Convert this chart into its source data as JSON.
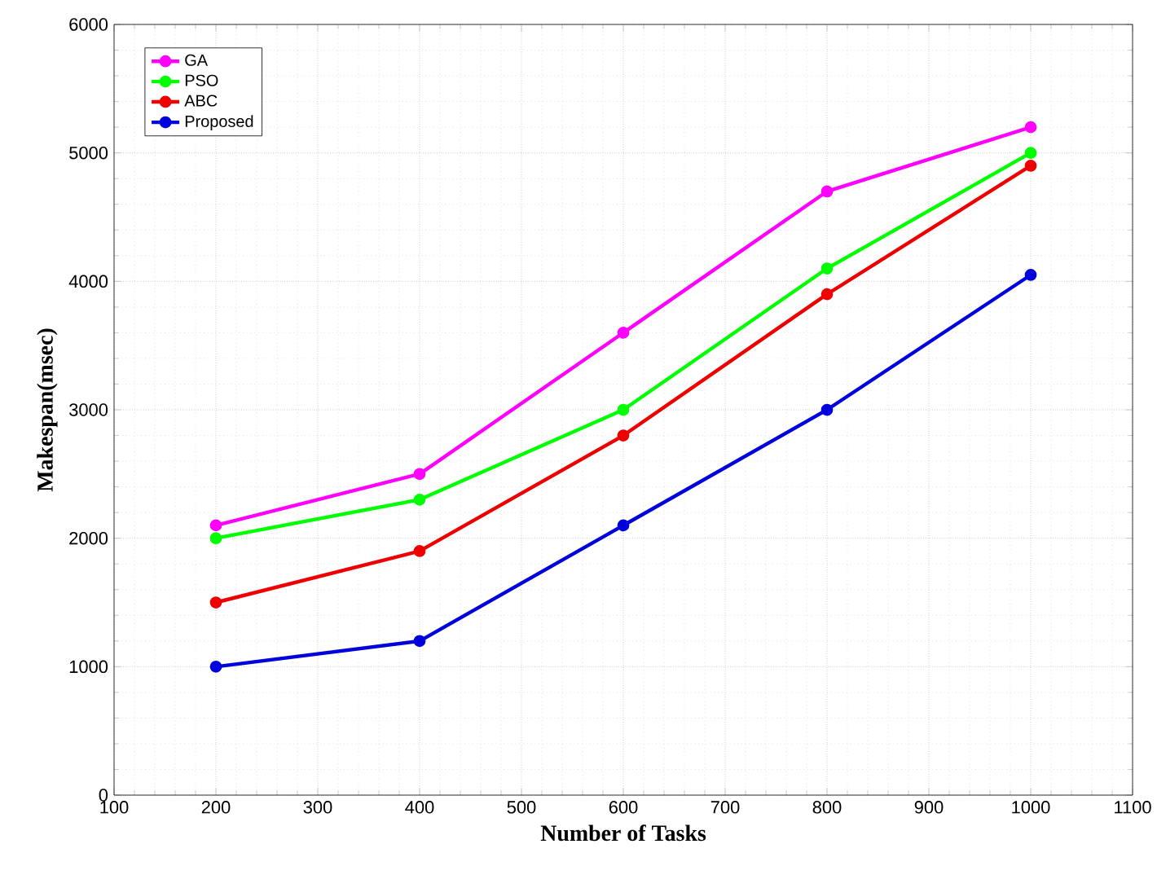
{
  "chart_data": {
    "type": "line",
    "xlabel": "Number of Tasks",
    "ylabel": "Makespan(msec)",
    "x": [
      200,
      400,
      600,
      800,
      1000
    ],
    "series": [
      {
        "name": "GA",
        "color": "#ff00ff",
        "values": [
          2100,
          2500,
          3600,
          4700,
          5200
        ]
      },
      {
        "name": "PSO",
        "color": "#00ff00",
        "values": [
          2000,
          2300,
          3000,
          4100,
          5000
        ]
      },
      {
        "name": "ABC",
        "color": "#ee0000",
        "values": [
          1500,
          1900,
          2800,
          3900,
          4900
        ]
      },
      {
        "name": "Proposed",
        "color": "#0000dd",
        "values": [
          1000,
          1200,
          2100,
          3000,
          4050
        ]
      }
    ],
    "xlim": [
      100,
      1100
    ],
    "ylim": [
      0,
      6000
    ],
    "xticks": [
      100,
      200,
      300,
      400,
      500,
      600,
      700,
      800,
      900,
      1000,
      1100
    ],
    "yticks": [
      0,
      1000,
      2000,
      3000,
      4000,
      5000,
      6000
    ],
    "grid": true,
    "legend": "top left",
    "marker": "circle",
    "line_style": "solid"
  }
}
